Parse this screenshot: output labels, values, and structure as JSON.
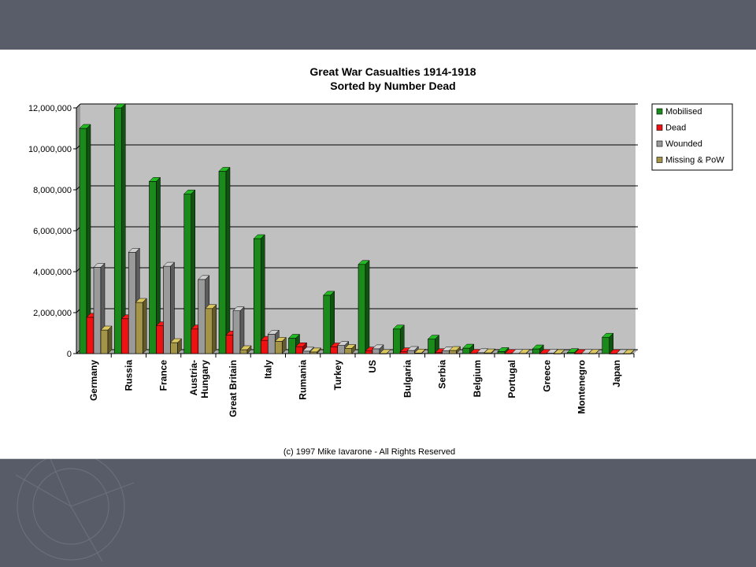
{
  "chart_data": {
    "type": "bar",
    "title": "Great War Casualties 1914-1918",
    "subtitle": "Sorted by Number Dead",
    "footer": "(c) 1997 Mike Iavarone - All Rights Reserved",
    "ylim": [
      0,
      12000000
    ],
    "yticks": [
      0,
      2000000,
      4000000,
      6000000,
      8000000,
      10000000,
      12000000
    ],
    "ytick_labels": [
      "0",
      "2,000,000",
      "4,000,000",
      "6,000,000",
      "8,000,000",
      "10,000,000",
      "12,000,000"
    ],
    "grid": true,
    "legend_position": "right",
    "categories": [
      [
        "Germany"
      ],
      [
        "Russia"
      ],
      [
        "France"
      ],
      [
        "Austria-",
        "Hungary"
      ],
      [
        "Great Britain"
      ],
      [
        "Italy"
      ],
      [
        "Rumania"
      ],
      [
        "Turkey"
      ],
      [
        "US"
      ],
      [
        "Bulgaria"
      ],
      [
        "Serbia"
      ],
      [
        "Belgium"
      ],
      [
        "Portugal"
      ],
      [
        "Greece"
      ],
      [
        "Montenegro"
      ],
      [
        "Japan"
      ]
    ],
    "series": [
      {
        "name": "Mobilised",
        "color": "#1a8a1a",
        "values": [
          11000000,
          12000000,
          8410000,
          7800000,
          8904467,
          5615000,
          750000,
          2850000,
          4355000,
          1200000,
          707343,
          267000,
          100000,
          230000,
          50000,
          800000
        ]
      },
      {
        "name": "Dead",
        "color": "#ee1111",
        "values": [
          1773700,
          1700000,
          1357800,
          1200000,
          908371,
          650000,
          335706,
          325000,
          126000,
          87500,
          45000,
          13716,
          7222,
          5000,
          3000,
          300
        ]
      },
      {
        "name": "Wounded",
        "color": "#9a9a9a",
        "values": [
          4216058,
          4950000,
          4266000,
          3620000,
          2090212,
          947000,
          120000,
          400000,
          234300,
          152390,
          133148,
          44686,
          13751,
          21000,
          10000,
          907
        ]
      },
      {
        "name": "Missing & PoW",
        "color": "#a39448",
        "values": [
          1152800,
          2500000,
          537000,
          2200000,
          191652,
          600000,
          80000,
          250000,
          4500,
          27029,
          152958,
          34659,
          12318,
          1000,
          7000,
          3
        ]
      }
    ]
  }
}
